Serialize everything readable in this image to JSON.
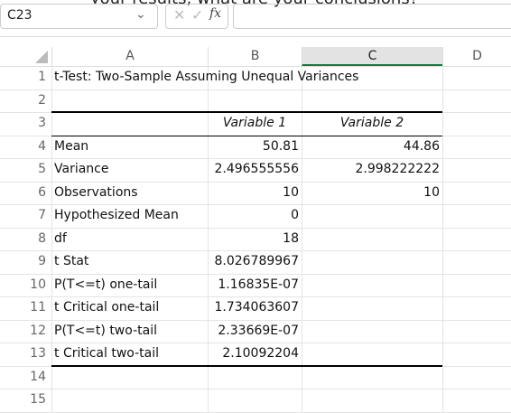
{
  "formula_bar": {
    "prompt_text": "your results, what are your conclusions?",
    "cell_ref": "C23",
    "fx": "fx"
  },
  "columns": [
    "A",
    "B",
    "C",
    "D"
  ],
  "rows": [
    {
      "number": "1",
      "cells": [
        "t-Test: Two-Sample Assuming Unequal Variances",
        null,
        null
      ]
    },
    {
      "number": "2",
      "cells": [
        null,
        null,
        null
      ]
    },
    {
      "number": "3",
      "cells": [
        null,
        "Variable 1",
        "Variable 2"
      ]
    },
    {
      "number": "4",
      "cells": [
        "Mean",
        "50.81",
        "44.86"
      ]
    },
    {
      "number": "5",
      "cells": [
        "Variance",
        "2.496555556",
        "2.998222222"
      ]
    },
    {
      "number": "6",
      "cells": [
        "Observations",
        "10",
        "10"
      ]
    },
    {
      "number": "7",
      "cells": [
        "Hypothesized Mean",
        "0",
        null
      ]
    },
    {
      "number": "8",
      "cells": [
        "df",
        "18",
        null
      ]
    },
    {
      "number": "9",
      "cells": [
        "t Stat",
        "8.026789967",
        null
      ]
    },
    {
      "number": "10",
      "cells": [
        "P(T<=t) one-tail",
        "1.16835E-07",
        null
      ]
    },
    {
      "number": "11",
      "cells": [
        "t Critical one-tail",
        "1.734063607",
        null
      ]
    },
    {
      "number": "12",
      "cells": [
        "P(T<=t) two-tail",
        "2.33669E-07",
        null
      ]
    },
    {
      "number": "13",
      "cells": [
        "t Critical two-tail",
        "2.10092204",
        null
      ]
    },
    {
      "number": "14",
      "cells": [
        null,
        null,
        null
      ]
    },
    {
      "number": "15",
      "cells": [
        null,
        null,
        null
      ]
    }
  ]
}
